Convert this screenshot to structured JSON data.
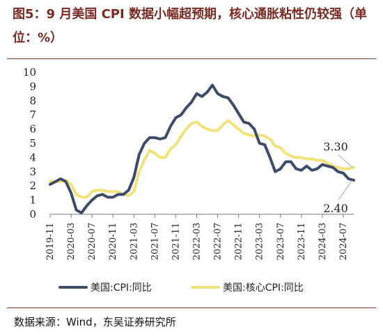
{
  "header": {
    "title": "图5：9 月美国 CPI 数据小幅超预期，核心通胀粘性仍较强（单位：%）"
  },
  "footer": {
    "source": "数据来源：Wind，东吴证券研究所"
  },
  "chart_data": {
    "type": "line",
    "title": "",
    "xlabel": "",
    "ylabel": "",
    "ylim": [
      0,
      10
    ],
    "yticks": [
      0,
      1,
      2,
      3,
      4,
      5,
      6,
      7,
      8,
      9,
      10
    ],
    "xticks": [
      "2019-11",
      "2020-03",
      "2020-07",
      "2020-11",
      "2021-03",
      "2021-07",
      "2021-11",
      "2022-03",
      "2022-07",
      "2022-11",
      "2023-03",
      "2023-07",
      "2023-11",
      "2024-03",
      "2024-07"
    ],
    "x": [
      "2019-11",
      "2019-12",
      "2020-01",
      "2020-02",
      "2020-03",
      "2020-04",
      "2020-05",
      "2020-06",
      "2020-07",
      "2020-08",
      "2020-09",
      "2020-10",
      "2020-11",
      "2020-12",
      "2021-01",
      "2021-02",
      "2021-03",
      "2021-04",
      "2021-05",
      "2021-06",
      "2021-07",
      "2021-08",
      "2021-09",
      "2021-10",
      "2021-11",
      "2021-12",
      "2022-01",
      "2022-02",
      "2022-03",
      "2022-04",
      "2022-05",
      "2022-06",
      "2022-07",
      "2022-08",
      "2022-09",
      "2022-10",
      "2022-11",
      "2022-12",
      "2023-01",
      "2023-02",
      "2023-03",
      "2023-04",
      "2023-05",
      "2023-06",
      "2023-07",
      "2023-08",
      "2023-09",
      "2023-10",
      "2023-11",
      "2023-12",
      "2024-01",
      "2024-02",
      "2024-03",
      "2024-04",
      "2024-05",
      "2024-06",
      "2024-07",
      "2024-08",
      "2024-09"
    ],
    "grid": false,
    "legend": "bottom",
    "series": [
      {
        "name": "美国:CPI:同比",
        "color": "#3d4a68",
        "values": [
          2.1,
          2.3,
          2.5,
          2.3,
          1.5,
          0.3,
          0.1,
          0.6,
          1.0,
          1.3,
          1.4,
          1.2,
          1.2,
          1.4,
          1.4,
          1.7,
          2.6,
          4.2,
          5.0,
          5.4,
          5.4,
          5.3,
          5.4,
          6.2,
          6.8,
          7.0,
          7.5,
          7.9,
          8.5,
          8.3,
          8.6,
          9.1,
          8.5,
          8.3,
          8.2,
          7.7,
          7.1,
          6.5,
          6.4,
          6.0,
          5.0,
          4.9,
          4.0,
          3.0,
          3.2,
          3.7,
          3.7,
          3.2,
          3.1,
          3.4,
          3.1,
          3.2,
          3.5,
          3.4,
          3.3,
          3.0,
          2.9,
          2.5,
          2.4
        ]
      },
      {
        "name": "美国:核心CPI:同比",
        "color": "#f2e27a",
        "values": [
          2.3,
          2.3,
          2.3,
          2.4,
          2.1,
          1.4,
          1.2,
          1.2,
          1.6,
          1.7,
          1.7,
          1.6,
          1.6,
          1.6,
          1.4,
          1.3,
          1.6,
          3.0,
          3.8,
          4.5,
          4.3,
          4.0,
          4.0,
          4.6,
          4.9,
          5.5,
          6.0,
          6.4,
          6.5,
          6.2,
          6.0,
          5.9,
          5.9,
          6.3,
          6.6,
          6.3,
          6.0,
          5.7,
          5.6,
          5.5,
          5.6,
          5.5,
          5.3,
          4.8,
          4.7,
          4.3,
          4.1,
          4.0,
          4.0,
          3.9,
          3.9,
          3.8,
          3.8,
          3.6,
          3.4,
          3.3,
          3.2,
          3.2,
          3.3
        ]
      }
    ],
    "annotations": [
      {
        "text": "3.30",
        "series": 1,
        "value": 3.3
      },
      {
        "text": "2.40",
        "series": 0,
        "value": 2.4
      }
    ]
  }
}
